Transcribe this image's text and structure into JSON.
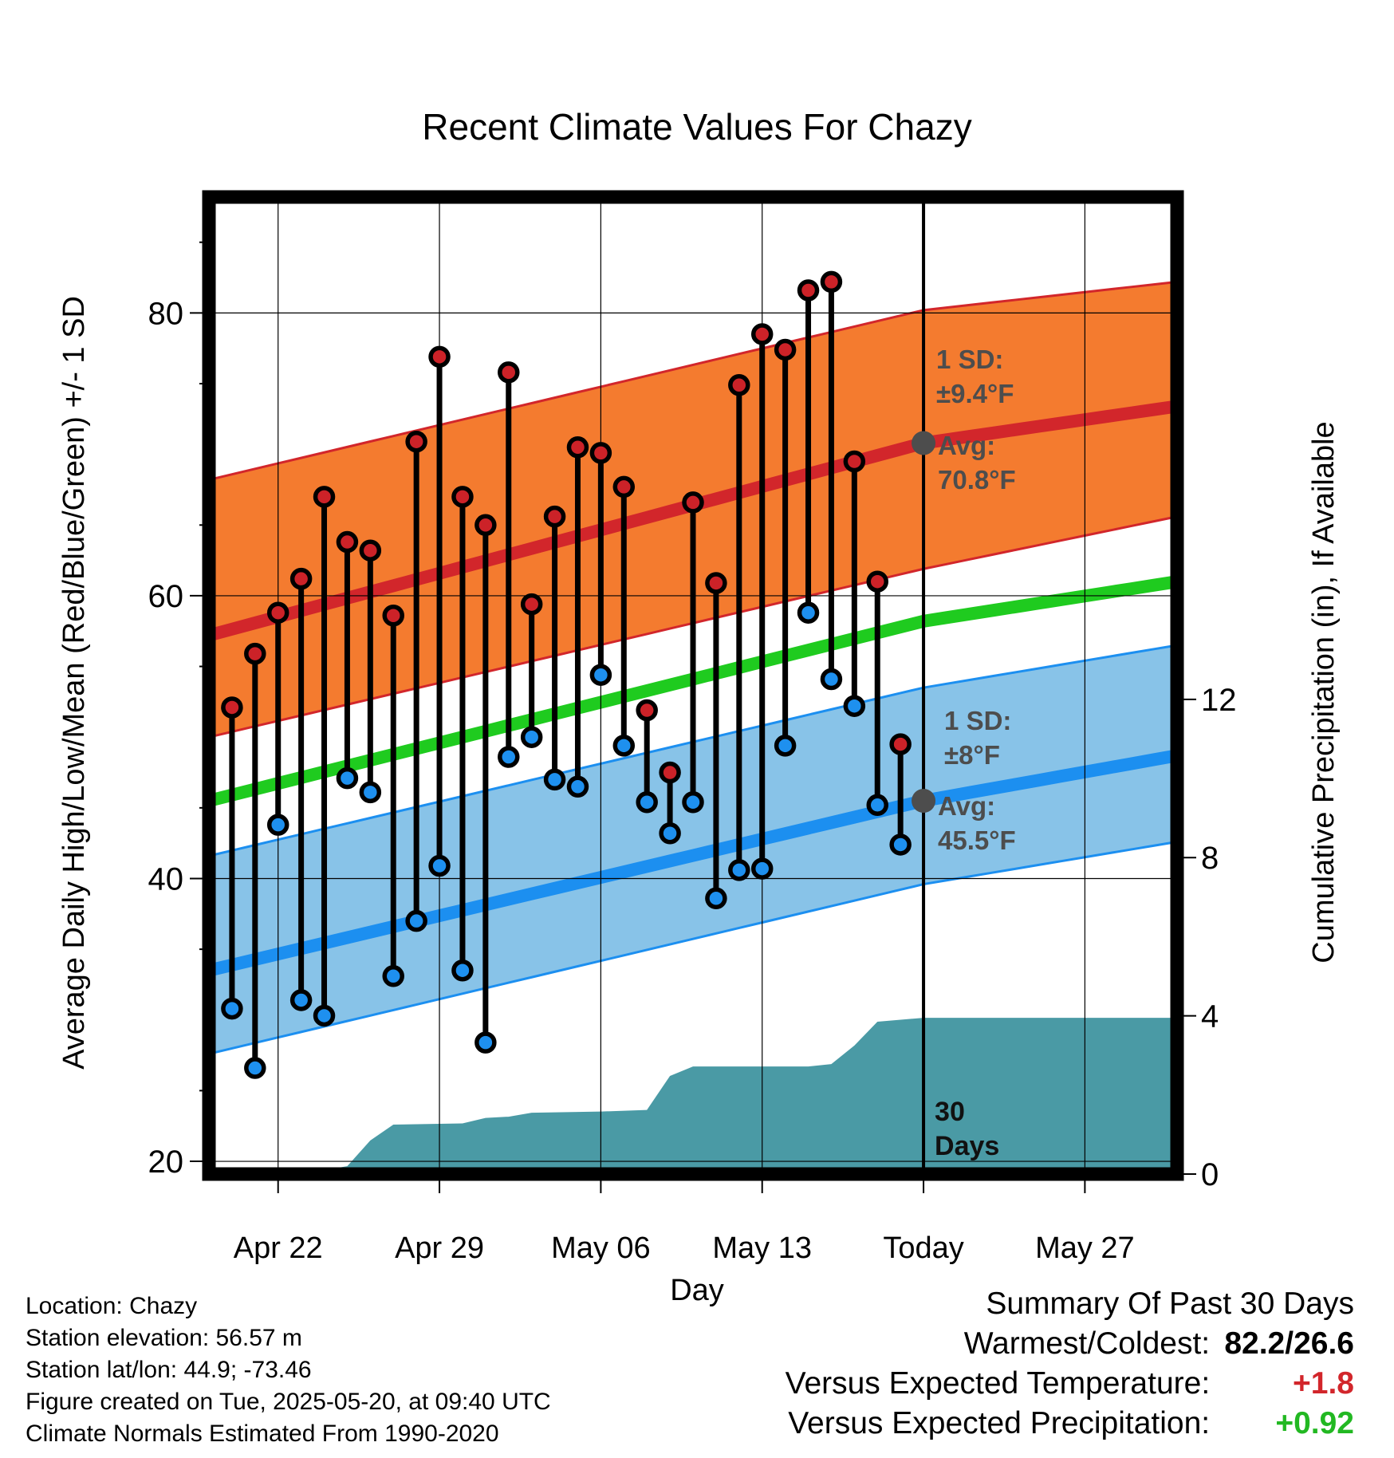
{
  "title": "Recent Climate Values For Chazy",
  "chart_data": {
    "type": "line",
    "title": "Recent Climate Values For Chazy",
    "xlabel": "Day",
    "ylabel": "Average Daily High/Low/Mean (Red/Blue/Green) +/- 1 SD",
    "y2label": "Cumulative Precipitation (in), If Available",
    "ylim": [
      19.1,
      88.2
    ],
    "y2lim": [
      0,
      24.7
    ],
    "x_axis": {
      "start_date": "2025-04-19",
      "end_date": "2025-05-31",
      "tick_dates": [
        "2025-04-22",
        "2025-04-29",
        "2025-05-06",
        "2025-05-13",
        "2025-05-20",
        "2025-05-27"
      ],
      "tick_labels": [
        "Apr 22",
        "Apr 29",
        "May 06",
        "May 13",
        "Today",
        "May 27"
      ]
    },
    "y_ticks": [
      "20",
      "40",
      "60",
      "80"
    ],
    "y2_ticks": [
      "0",
      "4",
      "8",
      "12"
    ],
    "grid": true,
    "today": "2025-05-20",
    "normals": {
      "high_avg": {
        "x": [
          "2025-04-19",
          "2025-05-20",
          "2025-05-31"
        ],
        "y": [
          57.2,
          70.8,
          73.4
        ]
      },
      "high_band": {
        "x": [
          "2025-04-19",
          "2025-05-20",
          "2025-05-31"
        ],
        "upper": [
          68.2,
          80.2,
          82.2
        ],
        "lower": [
          50.0,
          61.9,
          65.6
        ]
      },
      "mean_avg": {
        "x": [
          "2025-04-19",
          "2025-05-20",
          "2025-05-31"
        ],
        "y": [
          45.5,
          58.2,
          61.0
        ]
      },
      "low_avg": {
        "x": [
          "2025-04-19",
          "2025-05-20",
          "2025-05-31"
        ],
        "y": [
          33.5,
          45.5,
          48.7
        ]
      },
      "low_band": {
        "x": [
          "2025-04-19",
          "2025-05-20",
          "2025-05-31"
        ],
        "upper": [
          41.6,
          53.5,
          56.5
        ],
        "lower": [
          27.6,
          39.6,
          42.6
        ]
      }
    },
    "high_annotation": {
      "sd_label": "1 SD:",
      "sd_value": "±9.4°F",
      "avg_label": "Avg:",
      "avg_value": "70.8°F"
    },
    "low_annotation": {
      "sd_label": "1 SD:",
      "sd_value": "±8°F",
      "avg_label": "Avg:",
      "avg_value": "45.5°F"
    },
    "days_label": [
      "30",
      "Days"
    ],
    "observations": [
      {
        "date": "2025-04-20",
        "high": 52.1,
        "low": 30.8
      },
      {
        "date": "2025-04-21",
        "high": 55.9,
        "low": 26.6
      },
      {
        "date": "2025-04-22",
        "high": 58.8,
        "low": 43.8
      },
      {
        "date": "2025-04-23",
        "high": 61.2,
        "low": 31.4
      },
      {
        "date": "2025-04-24",
        "high": 67.0,
        "low": 30.3
      },
      {
        "date": "2025-04-25",
        "high": 63.8,
        "low": 47.1
      },
      {
        "date": "2025-04-26",
        "high": 63.2,
        "low": 46.1
      },
      {
        "date": "2025-04-27",
        "high": 58.6,
        "low": 33.1
      },
      {
        "date": "2025-04-28",
        "high": 70.9,
        "low": 37.0
      },
      {
        "date": "2025-04-29",
        "high": 76.9,
        "low": 40.9
      },
      {
        "date": "2025-04-30",
        "high": 67.0,
        "low": 33.5
      },
      {
        "date": "2025-05-01",
        "high": 65.0,
        "low": 28.4
      },
      {
        "date": "2025-05-02",
        "high": 75.8,
        "low": 48.6
      },
      {
        "date": "2025-05-03",
        "high": 59.4,
        "low": 50.0
      },
      {
        "date": "2025-05-04",
        "high": 65.6,
        "low": 47.0
      },
      {
        "date": "2025-05-05",
        "high": 70.5,
        "low": 46.5
      },
      {
        "date": "2025-05-06",
        "high": 70.1,
        "low": 54.4
      },
      {
        "date": "2025-05-07",
        "high": 67.7,
        "low": 49.4
      },
      {
        "date": "2025-05-08",
        "high": 51.9,
        "low": 45.4
      },
      {
        "date": "2025-05-09",
        "high": 47.5,
        "low": 43.2
      },
      {
        "date": "2025-05-10",
        "high": 66.6,
        "low": 45.4
      },
      {
        "date": "2025-05-11",
        "high": 60.9,
        "low": 38.6
      },
      {
        "date": "2025-05-12",
        "high": 74.9,
        "low": 40.6
      },
      {
        "date": "2025-05-13",
        "high": 78.5,
        "low": 40.7
      },
      {
        "date": "2025-05-14",
        "high": 77.4,
        "low": 49.4
      },
      {
        "date": "2025-05-15",
        "high": 81.6,
        "low": 58.8
      },
      {
        "date": "2025-05-16",
        "high": 82.2,
        "low": 54.1
      },
      {
        "date": "2025-05-17",
        "high": 69.5,
        "low": 52.2
      },
      {
        "date": "2025-05-18",
        "high": 61.0,
        "low": 45.2
      },
      {
        "date": "2025-05-19",
        "high": 49.5,
        "low": 42.4
      }
    ],
    "precipitation": {
      "x": [
        "2025-04-20",
        "2025-04-21",
        "2025-04-24",
        "2025-04-25",
        "2025-04-26",
        "2025-04-27",
        "2025-04-30",
        "2025-05-01",
        "2025-05-02",
        "2025-05-03",
        "2025-05-06",
        "2025-05-08",
        "2025-05-09",
        "2025-05-10",
        "2025-05-15",
        "2025-05-16",
        "2025-05-17",
        "2025-05-18",
        "2025-05-20",
        "2025-05-31"
      ],
      "y": [
        0.0,
        0.05,
        0.1,
        0.2,
        0.85,
        1.25,
        1.28,
        1.42,
        1.45,
        1.55,
        1.58,
        1.62,
        2.48,
        2.72,
        2.72,
        2.78,
        3.25,
        3.85,
        3.95,
        3.95
      ]
    },
    "colors": {
      "high_band": "#f47b2f",
      "high_line": "#d2262b",
      "mean_line": "#1fcb1f",
      "low_band": "#88c3e8",
      "low_line": "#1c8ff0",
      "precip": "#4a9aa5",
      "high_marker": "#cc2228",
      "low_marker": "#1e90ef",
      "annotation": "#4d4d4d"
    }
  },
  "station_info": [
    "Location: Chazy",
    "Station elevation: 56.57 m",
    "Station lat/lon: 44.9; -73.46",
    "Figure created on Tue, 2025-05-20, at 09:40 UTC",
    "Climate Normals Estimated From 1990-2020"
  ],
  "summary": {
    "heading": "Summary Of Past 30 Days",
    "warmest_coldest_label": "Warmest/Coldest:",
    "warmest_coldest_value": "82.2/26.6",
    "temp_label": "Versus Expected Temperature:",
    "temp_value": "+1.8",
    "temp_color": "#d2262b",
    "precip_label": "Versus Expected Precipitation:",
    "precip_value": "+0.92",
    "precip_color": "#22b822"
  }
}
